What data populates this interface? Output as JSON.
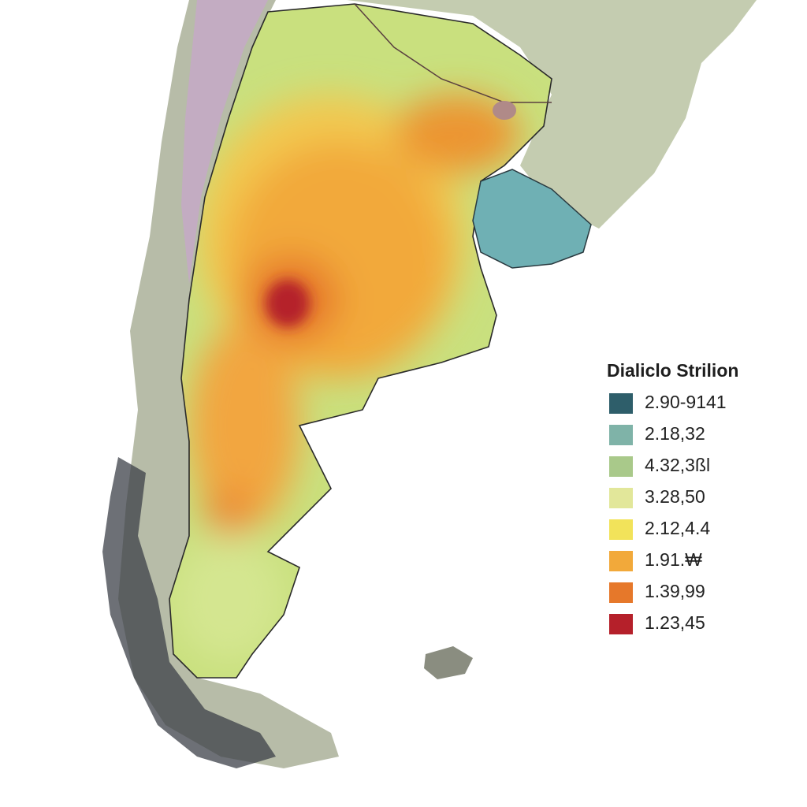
{
  "legend": {
    "title": "Dialiclo Strilion",
    "items": [
      {
        "label": "2.90-9141",
        "color": "#2e5e6a"
      },
      {
        "label": "2.18,32",
        "color": "#7fb3a8"
      },
      {
        "label": "4.32,3ßl",
        "color": "#a9c98a"
      },
      {
        "label": "3.28,50",
        "color": "#e2e79a"
      },
      {
        "label": "2.12,4.4",
        "color": "#f2e35a"
      },
      {
        "label": "1.91.₩",
        "color": "#f2a93a"
      },
      {
        "label": "1.39,99",
        "color": "#e6782a"
      },
      {
        "label": "1.23,45",
        "color": "#b5202a"
      }
    ]
  }
}
